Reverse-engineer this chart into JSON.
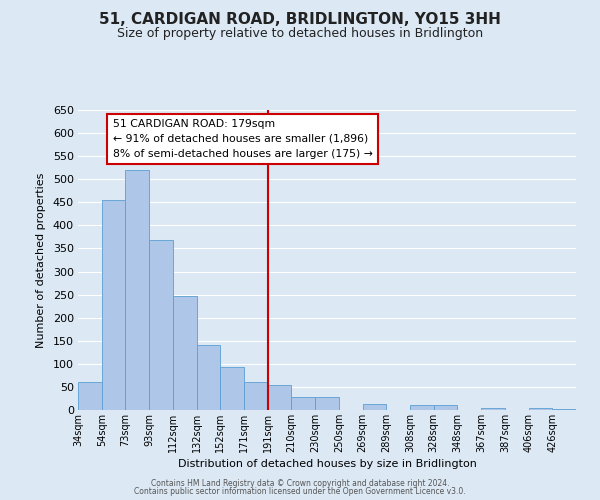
{
  "title": "51, CARDIGAN ROAD, BRIDLINGTON, YO15 3HH",
  "subtitle": "Size of property relative to detached houses in Bridlington",
  "xlabel": "Distribution of detached houses by size in Bridlington",
  "ylabel": "Number of detached properties",
  "bar_labels": [
    "34sqm",
    "54sqm",
    "73sqm",
    "93sqm",
    "112sqm",
    "132sqm",
    "152sqm",
    "171sqm",
    "191sqm",
    "210sqm",
    "230sqm",
    "250sqm",
    "269sqm",
    "289sqm",
    "308sqm",
    "328sqm",
    "348sqm",
    "367sqm",
    "387sqm",
    "406sqm",
    "426sqm"
  ],
  "bar_values": [
    60,
    455,
    520,
    368,
    248,
    140,
    93,
    60,
    55,
    28,
    28,
    0,
    12,
    0,
    10,
    10,
    0,
    5,
    0,
    5,
    3
  ],
  "bar_color": "#aec6e8",
  "bar_edgecolor": "#5a9fd4",
  "background_color": "#dce9f5",
  "grid_color": "#ffffff",
  "marker_color": "#cc0000",
  "marker_bin_index": 8,
  "annotation_text": "51 CARDIGAN ROAD: 179sqm\n← 91% of detached houses are smaller (1,896)\n8% of semi-detached houses are larger (175) →",
  "annotation_box_color": "#ffffff",
  "annotation_box_edgecolor": "#cc0000",
  "ylim": [
    0,
    650
  ],
  "yticks": [
    0,
    50,
    100,
    150,
    200,
    250,
    300,
    350,
    400,
    450,
    500,
    550,
    600,
    650
  ],
  "footer_line1": "Contains HM Land Registry data © Crown copyright and database right 2024.",
  "footer_line2": "Contains public sector information licensed under the Open Government Licence v3.0."
}
